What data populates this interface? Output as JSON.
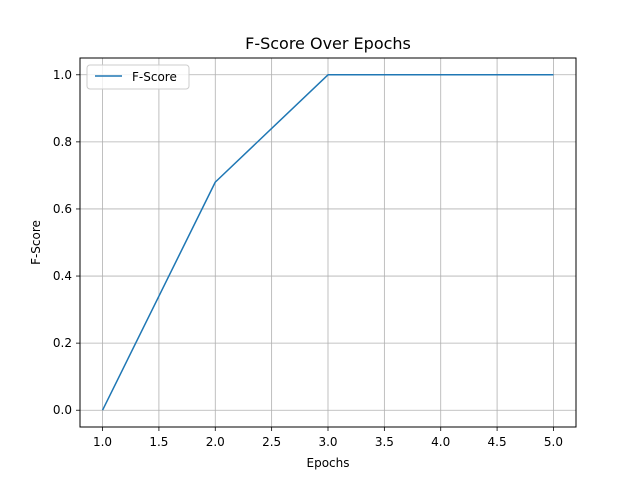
{
  "chart_data": {
    "type": "line",
    "title": "F-Score Over Epochs",
    "xlabel": "Epochs",
    "ylabel": "F-Score",
    "x": [
      1,
      2,
      3,
      4,
      5
    ],
    "series": [
      {
        "name": "F-Score",
        "values": [
          0.0,
          0.68,
          1.0,
          1.0,
          1.0
        ],
        "color": "#1f77b4"
      }
    ],
    "xlim": [
      0.8,
      5.2
    ],
    "ylim": [
      -0.05,
      1.05
    ],
    "xticks": [
      1.0,
      1.5,
      2.0,
      2.5,
      3.0,
      3.5,
      4.0,
      4.5,
      5.0
    ],
    "xtick_labels": [
      "1.0",
      "1.5",
      "2.0",
      "2.5",
      "3.0",
      "3.5",
      "4.0",
      "4.5",
      "5.0"
    ],
    "yticks": [
      0.0,
      0.2,
      0.4,
      0.6,
      0.8,
      1.0
    ],
    "ytick_labels": [
      "0.0",
      "0.2",
      "0.4",
      "0.6",
      "0.8",
      "1.0"
    ],
    "grid": true,
    "legend_position": "top-left"
  }
}
